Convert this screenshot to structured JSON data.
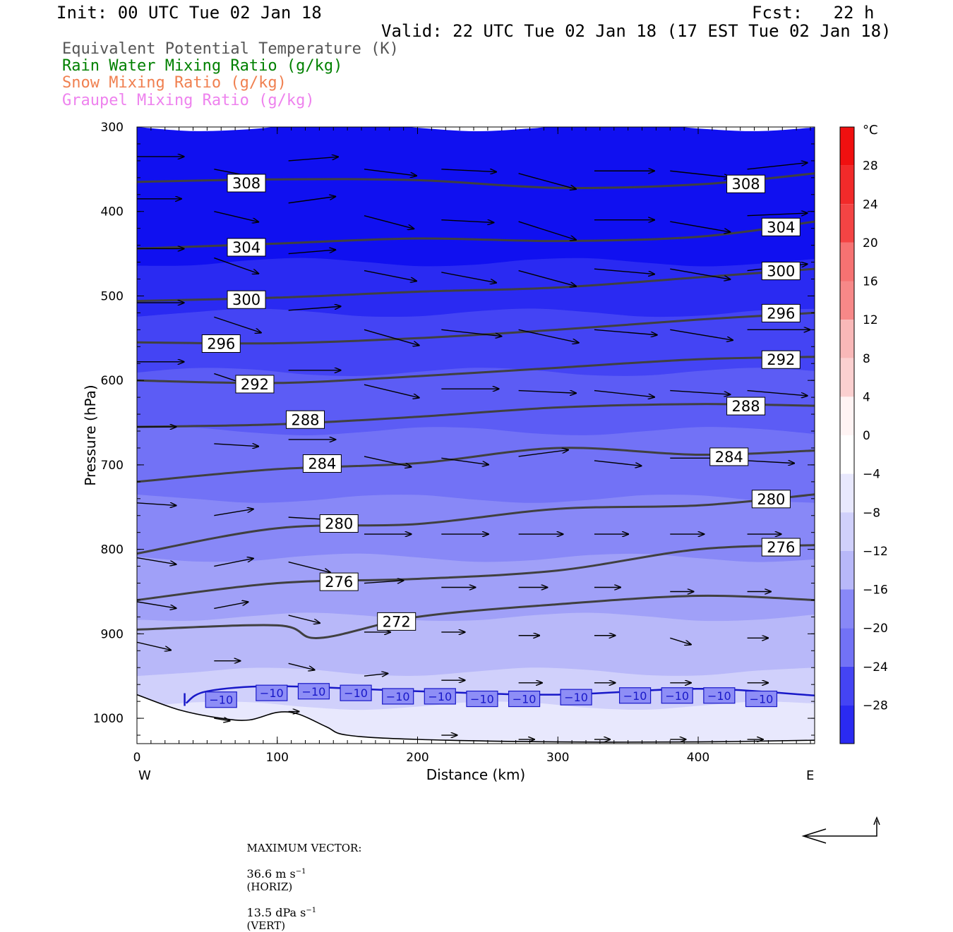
{
  "header": {
    "init": "Init: 00 UTC Tue 02 Jan 18",
    "fcst": "Fcst:   22 h",
    "valid": "Valid: 22 UTC Tue 02 Jan 18 (17 EST Tue 02 Jan 18)"
  },
  "legend": [
    {
      "text": "Equivalent Potential Temperature (K)",
      "color": "#555555"
    },
    {
      "text": "Rain Water Mixing Ratio (g/kg)",
      "color": "#008000"
    },
    {
      "text": "Snow Mixing Ratio (g/kg)",
      "color": "#f08050"
    },
    {
      "text": "Graupel Mixing Ratio (g/kg)",
      "color": "#ee82ee"
    }
  ],
  "colorbar": {
    "unit": "°C",
    "ticks": [
      "28",
      "24",
      "20",
      "16",
      "12",
      "8",
      "4",
      "0",
      "−4",
      "−8",
      "−12",
      "−16",
      "−20",
      "−24",
      "−28"
    ]
  },
  "footer": {
    "max_vector_label": "MAXIMUM VECTOR:",
    "horiz_value": "36.6 m s",
    "horiz_tag": "(HORIZ)",
    "vert_value": "13.5 dPa s",
    "vert_tag": "(VERT)",
    "exponent": "−1"
  },
  "chart_data": {
    "type": "heatmap",
    "xlabel": "Distance (km)",
    "ylabel": "Pressure (hPa)",
    "xlim": [
      0,
      483
    ],
    "ylim": [
      1030,
      300
    ],
    "x_ticks": [
      "0",
      "100",
      "200",
      "300",
      "400"
    ],
    "y_ticks": [
      "300",
      "400",
      "500",
      "600",
      "700",
      "800",
      "900",
      "1000"
    ],
    "x_end_labels": {
      "left": "W",
      "right": "E"
    },
    "fill_variable": "Temperature (°C)",
    "fill_levels": [
      -28,
      -24,
      -20,
      -16,
      -12,
      -8,
      -4,
      0,
      4,
      8,
      12,
      16,
      20,
      24,
      28
    ],
    "theta_e_contours": [
      {
        "label": "308",
        "points": [
          [
            0,
            365
          ],
          [
            100,
            362
          ],
          [
            200,
            363
          ],
          [
            300,
            372
          ],
          [
            400,
            368
          ],
          [
            483,
            355
          ]
        ],
        "label_at": [
          [
            78,
            366
          ],
          [
            434,
            367
          ]
        ]
      },
      {
        "label": "304",
        "points": [
          [
            0,
            444
          ],
          [
            100,
            438
          ],
          [
            200,
            432
          ],
          [
            300,
            435
          ],
          [
            400,
            430
          ],
          [
            483,
            412
          ]
        ],
        "label_at": [
          [
            78,
            442
          ],
          [
            459,
            418
          ]
        ]
      },
      {
        "label": "300",
        "points": [
          [
            0,
            506
          ],
          [
            100,
            502
          ],
          [
            200,
            495
          ],
          [
            300,
            490
          ],
          [
            400,
            478
          ],
          [
            483,
            468
          ]
        ],
        "label_at": [
          [
            78,
            504
          ],
          [
            459,
            470
          ]
        ]
      },
      {
        "label": "296",
        "points": [
          [
            0,
            555
          ],
          [
            100,
            556
          ],
          [
            200,
            550
          ],
          [
            300,
            540
          ],
          [
            400,
            528
          ],
          [
            483,
            520
          ]
        ],
        "label_at": [
          [
            60,
            556
          ],
          [
            459,
            520
          ]
        ]
      },
      {
        "label": "292",
        "points": [
          [
            0,
            600
          ],
          [
            100,
            603
          ],
          [
            200,
            595
          ],
          [
            300,
            585
          ],
          [
            400,
            575
          ],
          [
            483,
            572
          ]
        ],
        "label_at": [
          [
            84,
            604
          ],
          [
            459,
            575
          ]
        ]
      },
      {
        "label": "288",
        "points": [
          [
            0,
            655
          ],
          [
            100,
            652
          ],
          [
            200,
            643
          ],
          [
            300,
            632
          ],
          [
            400,
            628
          ],
          [
            483,
            630
          ]
        ],
        "label_at": [
          [
            120,
            646
          ],
          [
            434,
            630
          ]
        ]
      },
      {
        "label": "284",
        "points": [
          [
            0,
            720
          ],
          [
            100,
            705
          ],
          [
            200,
            698
          ],
          [
            300,
            680
          ],
          [
            400,
            688
          ],
          [
            483,
            683
          ]
        ],
        "label_at": [
          [
            132,
            698
          ],
          [
            422,
            690
          ]
        ]
      },
      {
        "label": "280",
        "points": [
          [
            0,
            805
          ],
          [
            100,
            775
          ],
          [
            200,
            770
          ],
          [
            300,
            752
          ],
          [
            400,
            748
          ],
          [
            483,
            735
          ]
        ],
        "label_at": [
          [
            144,
            769
          ],
          [
            452,
            740
          ]
        ]
      },
      {
        "label": "276",
        "points": [
          [
            0,
            860
          ],
          [
            100,
            840
          ],
          [
            200,
            835
          ],
          [
            300,
            825
          ],
          [
            400,
            800
          ],
          [
            483,
            795
          ]
        ],
        "label_at": [
          [
            144,
            838
          ],
          [
            459,
            797
          ]
        ]
      },
      {
        "label": "272",
        "points": [
          [
            0,
            895
          ],
          [
            100,
            890
          ],
          [
            130,
            905
          ],
          [
            200,
            880
          ],
          [
            300,
            865
          ],
          [
            400,
            855
          ],
          [
            483,
            860
          ]
        ],
        "label_at": [
          [
            185,
            885
          ]
        ]
      }
    ],
    "temperature_contour": {
      "label": "−10",
      "points": [
        [
          35,
          982
        ],
        [
          50,
          968
        ],
        [
          100,
          962
        ],
        [
          200,
          968
        ],
        [
          300,
          972
        ],
        [
          400,
          965
        ],
        [
          483,
          973
        ]
      ],
      "label_at": [
        [
          60,
          978
        ],
        [
          96,
          970
        ],
        [
          126,
          968
        ],
        [
          156,
          970
        ],
        [
          186,
          974
        ],
        [
          216,
          974
        ],
        [
          246,
          977
        ],
        [
          276,
          977
        ],
        [
          313,
          975
        ],
        [
          355,
          973
        ],
        [
          385,
          973
        ],
        [
          415,
          973
        ],
        [
          445,
          977
        ]
      ]
    },
    "terrain": [
      [
        0,
        972
      ],
      [
        30,
        990
      ],
      [
        60,
        1000
      ],
      [
        80,
        1002
      ],
      [
        100,
        993
      ],
      [
        115,
        995
      ],
      [
        135,
        1010
      ],
      [
        150,
        1020
      ],
      [
        200,
        1025
      ],
      [
        300,
        1028
      ],
      [
        400,
        1028
      ],
      [
        483,
        1026
      ]
    ],
    "wind_vectors": [
      {
        "x": 0,
        "p": 335,
        "u": 36,
        "w": 0
      },
      {
        "x": 55,
        "p": 350,
        "u": 36,
        "w": 7
      },
      {
        "x": 108,
        "p": 340,
        "u": 38,
        "w": -3
      },
      {
        "x": 162,
        "p": 350,
        "u": 40,
        "w": 5
      },
      {
        "x": 217,
        "p": 350,
        "u": 42,
        "w": 2
      },
      {
        "x": 272,
        "p": 355,
        "u": 44,
        "w": 12
      },
      {
        "x": 326,
        "p": 352,
        "u": 46,
        "w": 0
      },
      {
        "x": 380,
        "p": 352,
        "u": 46,
        "w": 5
      },
      {
        "x": 435,
        "p": 350,
        "u": 46,
        "w": -5
      },
      {
        "x": 0,
        "p": 385,
        "u": 34,
        "w": 0
      },
      {
        "x": 55,
        "p": 400,
        "u": 34,
        "w": 8
      },
      {
        "x": 108,
        "p": 390,
        "u": 36,
        "w": -5
      },
      {
        "x": 162,
        "p": 405,
        "u": 38,
        "w": 10
      },
      {
        "x": 217,
        "p": 410,
        "u": 40,
        "w": 2
      },
      {
        "x": 272,
        "p": 412,
        "u": 44,
        "w": 14
      },
      {
        "x": 326,
        "p": 410,
        "u": 46,
        "w": 0
      },
      {
        "x": 380,
        "p": 412,
        "u": 46,
        "w": 8
      },
      {
        "x": 435,
        "p": 405,
        "u": 46,
        "w": -2
      },
      {
        "x": 0,
        "p": 444,
        "u": 36,
        "w": 0
      },
      {
        "x": 55,
        "p": 455,
        "u": 34,
        "w": 12
      },
      {
        "x": 108,
        "p": 450,
        "u": 36,
        "w": -3
      },
      {
        "x": 162,
        "p": 470,
        "u": 40,
        "w": 8
      },
      {
        "x": 217,
        "p": 472,
        "u": 42,
        "w": 8
      },
      {
        "x": 272,
        "p": 470,
        "u": 44,
        "w": 12
      },
      {
        "x": 326,
        "p": 468,
        "u": 46,
        "w": 4
      },
      {
        "x": 380,
        "p": 468,
        "u": 46,
        "w": 8
      },
      {
        "x": 435,
        "p": 470,
        "u": 46,
        "w": -5
      },
      {
        "x": 0,
        "p": 508,
        "u": 36,
        "w": 0
      },
      {
        "x": 55,
        "p": 525,
        "u": 36,
        "w": 12
      },
      {
        "x": 108,
        "p": 517,
        "u": 40,
        "w": -3
      },
      {
        "x": 162,
        "p": 540,
        "u": 42,
        "w": 12
      },
      {
        "x": 217,
        "p": 540,
        "u": 46,
        "w": 5
      },
      {
        "x": 272,
        "p": 540,
        "u": 46,
        "w": 10
      },
      {
        "x": 326,
        "p": 540,
        "u": 48,
        "w": 4
      },
      {
        "x": 380,
        "p": 540,
        "u": 48,
        "w": 8
      },
      {
        "x": 435,
        "p": 540,
        "u": 48,
        "w": 0
      },
      {
        "x": 0,
        "p": 578,
        "u": 36,
        "w": 0
      },
      {
        "x": 55,
        "p": 592,
        "u": 36,
        "w": 12
      },
      {
        "x": 108,
        "p": 588,
        "u": 40,
        "w": 0
      },
      {
        "x": 162,
        "p": 605,
        "u": 42,
        "w": 10
      },
      {
        "x": 217,
        "p": 610,
        "u": 44,
        "w": 0
      },
      {
        "x": 272,
        "p": 612,
        "u": 44,
        "w": 2
      },
      {
        "x": 326,
        "p": 612,
        "u": 46,
        "w": 5
      },
      {
        "x": 380,
        "p": 612,
        "u": 46,
        "w": 3
      },
      {
        "x": 435,
        "p": 612,
        "u": 46,
        "w": 4
      },
      {
        "x": 0,
        "p": 655,
        "u": 30,
        "w": 0
      },
      {
        "x": 55,
        "p": 675,
        "u": 34,
        "w": 2
      },
      {
        "x": 108,
        "p": 670,
        "u": 36,
        "w": 0
      },
      {
        "x": 162,
        "p": 690,
        "u": 36,
        "w": 8
      },
      {
        "x": 217,
        "p": 692,
        "u": 36,
        "w": 5
      },
      {
        "x": 272,
        "p": 690,
        "u": 38,
        "w": -5
      },
      {
        "x": 326,
        "p": 695,
        "u": 36,
        "w": 4
      },
      {
        "x": 380,
        "p": 692,
        "u": 36,
        "w": 0
      },
      {
        "x": 435,
        "p": 695,
        "u": 36,
        "w": 2
      },
      {
        "x": 0,
        "p": 745,
        "u": 30,
        "w": 2
      },
      {
        "x": 55,
        "p": 760,
        "u": 30,
        "w": -5
      },
      {
        "x": 108,
        "p": 762,
        "u": 34,
        "w": 2
      },
      {
        "x": 162,
        "p": 782,
        "u": 36,
        "w": 0
      },
      {
        "x": 217,
        "p": 782,
        "u": 36,
        "w": 0
      },
      {
        "x": 272,
        "p": 782,
        "u": 34,
        "w": 0
      },
      {
        "x": 326,
        "p": 782,
        "u": 26,
        "w": 0
      },
      {
        "x": 380,
        "p": 782,
        "u": 26,
        "w": 0
      },
      {
        "x": 435,
        "p": 782,
        "u": 26,
        "w": 0
      },
      {
        "x": 0,
        "p": 810,
        "u": 30,
        "w": 5
      },
      {
        "x": 55,
        "p": 820,
        "u": 30,
        "w": -6
      },
      {
        "x": 108,
        "p": 815,
        "u": 32,
        "w": 8
      },
      {
        "x": 162,
        "p": 840,
        "u": 30,
        "w": -2
      },
      {
        "x": 217,
        "p": 845,
        "u": 26,
        "w": 0
      },
      {
        "x": 272,
        "p": 845,
        "u": 22,
        "w": 0
      },
      {
        "x": 326,
        "p": 845,
        "u": 20,
        "w": 0
      },
      {
        "x": 380,
        "p": 850,
        "u": 18,
        "w": 0
      },
      {
        "x": 435,
        "p": 850,
        "u": 18,
        "w": 0
      },
      {
        "x": 0,
        "p": 862,
        "u": 30,
        "w": 5
      },
      {
        "x": 55,
        "p": 870,
        "u": 26,
        "w": -5
      },
      {
        "x": 108,
        "p": 878,
        "u": 24,
        "w": 6
      },
      {
        "x": 162,
        "p": 898,
        "u": 20,
        "w": 0
      },
      {
        "x": 217,
        "p": 898,
        "u": 18,
        "w": 0
      },
      {
        "x": 272,
        "p": 902,
        "u": 16,
        "w": 0
      },
      {
        "x": 326,
        "p": 902,
        "u": 16,
        "w": 0
      },
      {
        "x": 380,
        "p": 905,
        "u": 16,
        "w": 5
      },
      {
        "x": 435,
        "p": 905,
        "u": 16,
        "w": 0
      },
      {
        "x": 0,
        "p": 910,
        "u": 26,
        "w": 6
      },
      {
        "x": 55,
        "p": 932,
        "u": 20,
        "w": 0
      },
      {
        "x": 108,
        "p": 935,
        "u": 20,
        "w": 5
      },
      {
        "x": 162,
        "p": 950,
        "u": 18,
        "w": -2
      },
      {
        "x": 217,
        "p": 955,
        "u": 18,
        "w": 0
      },
      {
        "x": 272,
        "p": 958,
        "u": 18,
        "w": 0
      },
      {
        "x": 326,
        "p": 958,
        "u": 16,
        "w": 0
      },
      {
        "x": 380,
        "p": 958,
        "u": 16,
        "w": 0
      },
      {
        "x": 435,
        "p": 958,
        "u": 16,
        "w": 0
      },
      {
        "x": 55,
        "p": 1000,
        "u": 12,
        "w": 2
      },
      {
        "x": 108,
        "p": 992,
        "u": 8,
        "w": 0
      },
      {
        "x": 217,
        "p": 1020,
        "u": 12,
        "w": 0
      },
      {
        "x": 272,
        "p": 1025,
        "u": 12,
        "w": 0
      },
      {
        "x": 326,
        "p": 1025,
        "u": 12,
        "w": 0
      },
      {
        "x": 380,
        "p": 1025,
        "u": 12,
        "w": 0
      },
      {
        "x": 435,
        "p": 1025,
        "u": 12,
        "w": 0
      }
    ]
  }
}
